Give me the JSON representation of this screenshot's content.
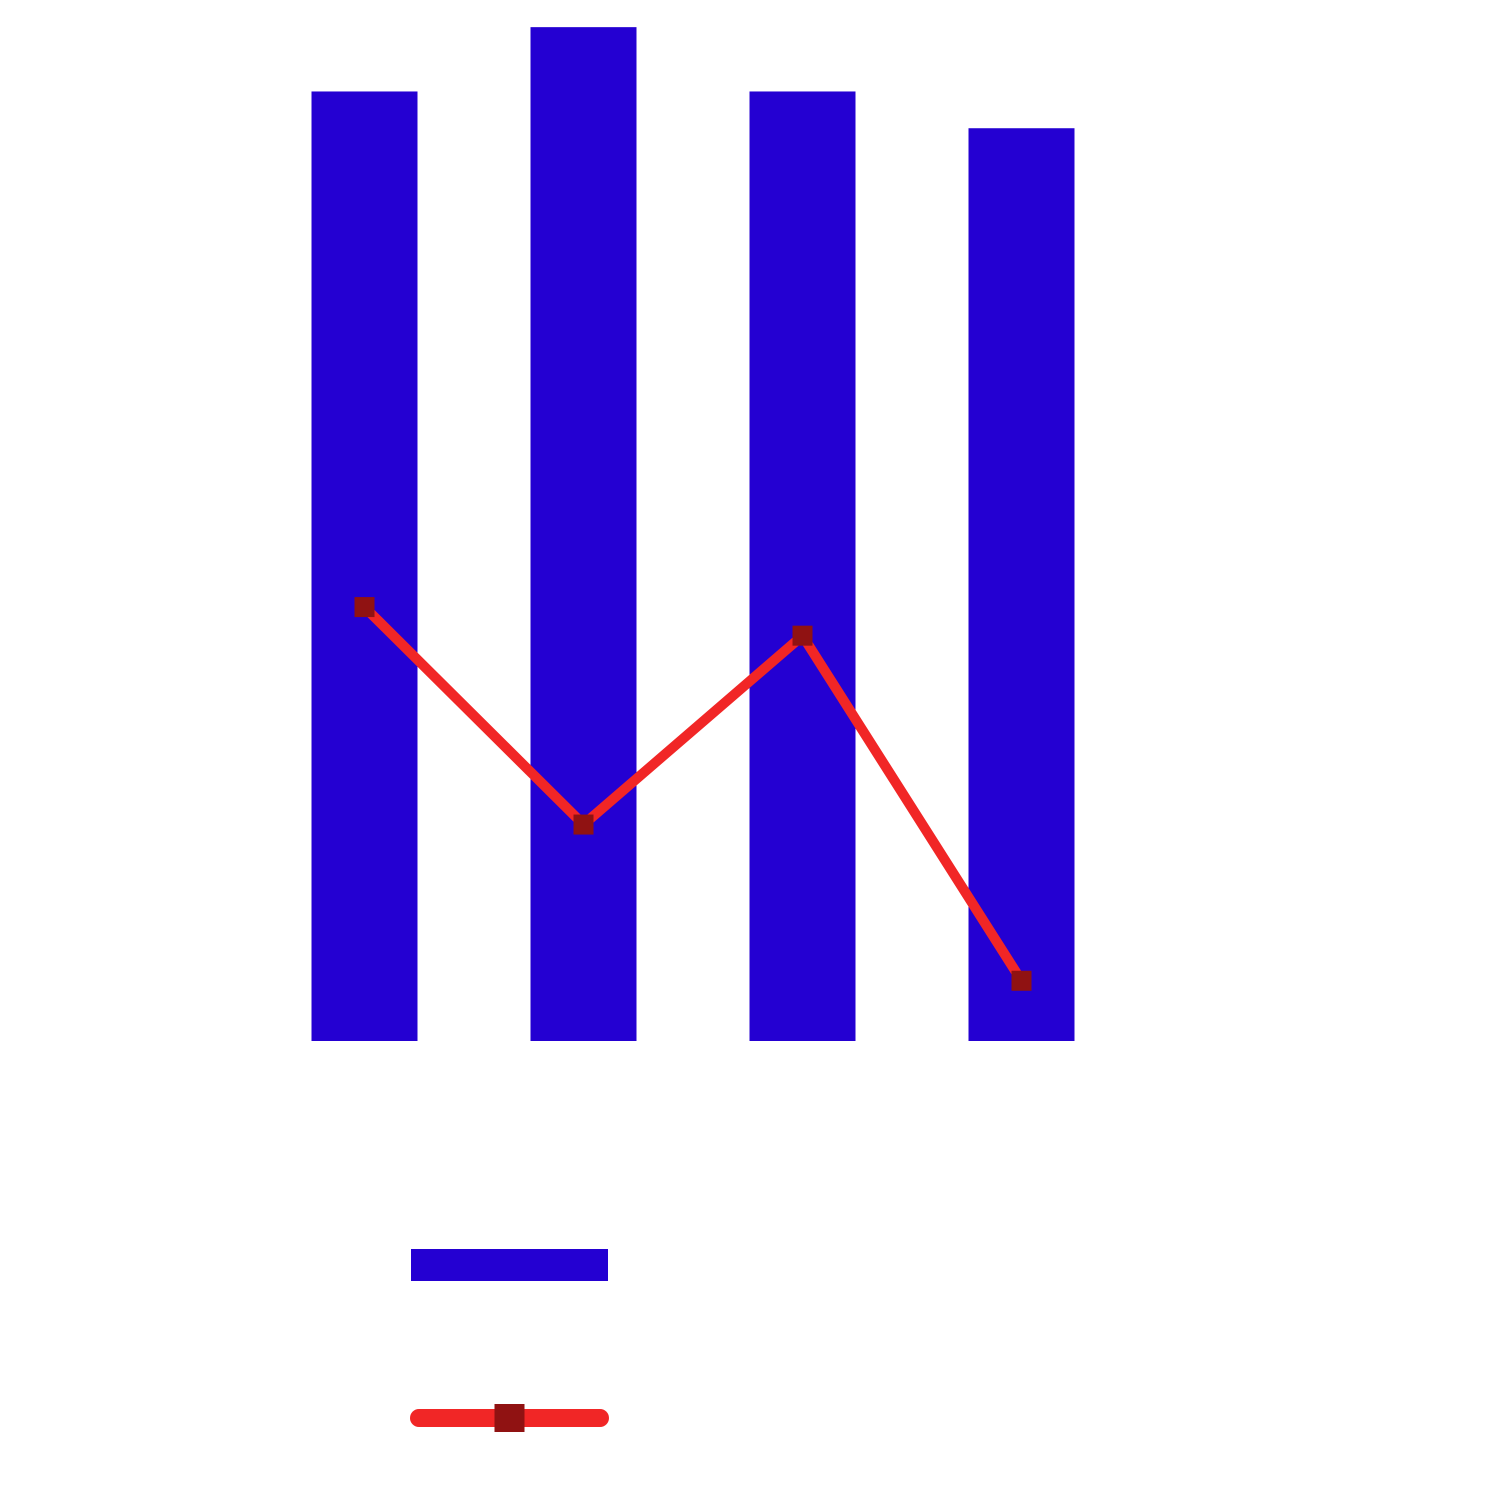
{
  "chart_data": {
    "type": "bar",
    "title": "",
    "xlabel": "",
    "ylabel": "",
    "categories": [
      "",
      "",
      "",
      ""
    ],
    "ylim": [
      0,
      100
    ],
    "y2lim": [
      0,
      100
    ],
    "series": [
      {
        "type": "bar",
        "color": "#2400d2",
        "values": [
          93,
          99.3,
          93,
          89.4
        ]
      },
      {
        "type": "line",
        "axis": "secondary",
        "color": "#f12626",
        "marker": "square",
        "marker_color": "#901212",
        "values": [
          42.5,
          21.2,
          39.7,
          5.9
        ]
      }
    ],
    "legend": {
      "position": "bottom-left",
      "entries": [
        {
          "symbol": "bar",
          "color": "#2400d2",
          "label": ""
        },
        {
          "symbol": "line-square",
          "color": "#f12626",
          "marker_color": "#901212",
          "label": ""
        }
      ]
    },
    "grid": false
  }
}
